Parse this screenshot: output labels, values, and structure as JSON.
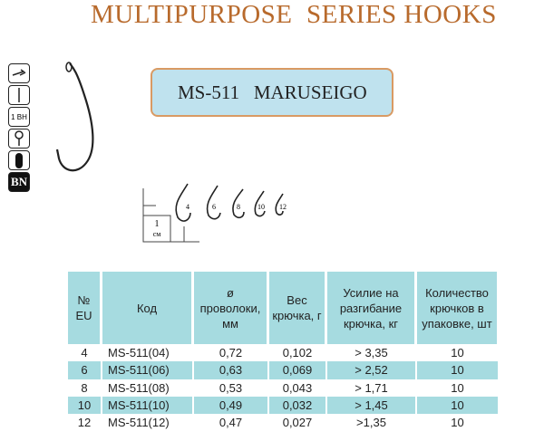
{
  "title": "MULTIPURPOSE  SERIES HOOKS",
  "model": "MS-511   MARUSEIGO",
  "icons": [
    {
      "name": "sharp-point-icon"
    },
    {
      "name": "straight-shank-icon"
    },
    {
      "name": "bend-icon",
      "label": "1 BH"
    },
    {
      "name": "ring-eye-icon"
    },
    {
      "name": "wire-section-icon"
    },
    {
      "name": "coating-icon",
      "label": "BN"
    }
  ],
  "scale": {
    "value": "1",
    "unit": "см",
    "sizes": [
      "4",
      "6",
      "8",
      "10",
      "12"
    ]
  },
  "table": {
    "headers": [
      "№ EU",
      "Код",
      "ø проволоки, мм",
      "Вес крючка, г",
      "Усилие на разгибание крючка, кг",
      "Количество крючков в упаковке, шт"
    ],
    "rows": [
      [
        "4",
        "MS-511(04)",
        "0,72",
        "0,102",
        "> 3,35",
        "10"
      ],
      [
        "6",
        "MS-511(06)",
        "0,63",
        "0,069",
        "> 2,52",
        "10"
      ],
      [
        "8",
        "MS-511(08)",
        "0,53",
        "0,043",
        "> 1,71",
        "10"
      ],
      [
        "10",
        "MS-511(10)",
        "0,49",
        "0,032",
        "> 1,45",
        "10"
      ],
      [
        "12",
        "MS-511(12)",
        "0,47",
        "0,027",
        ">1,35",
        "10"
      ]
    ]
  },
  "colors": {
    "title": "#b86a2c",
    "accent": "#a6dbe0",
    "box": "#bfe2ee",
    "box_border": "#d99a63"
  }
}
